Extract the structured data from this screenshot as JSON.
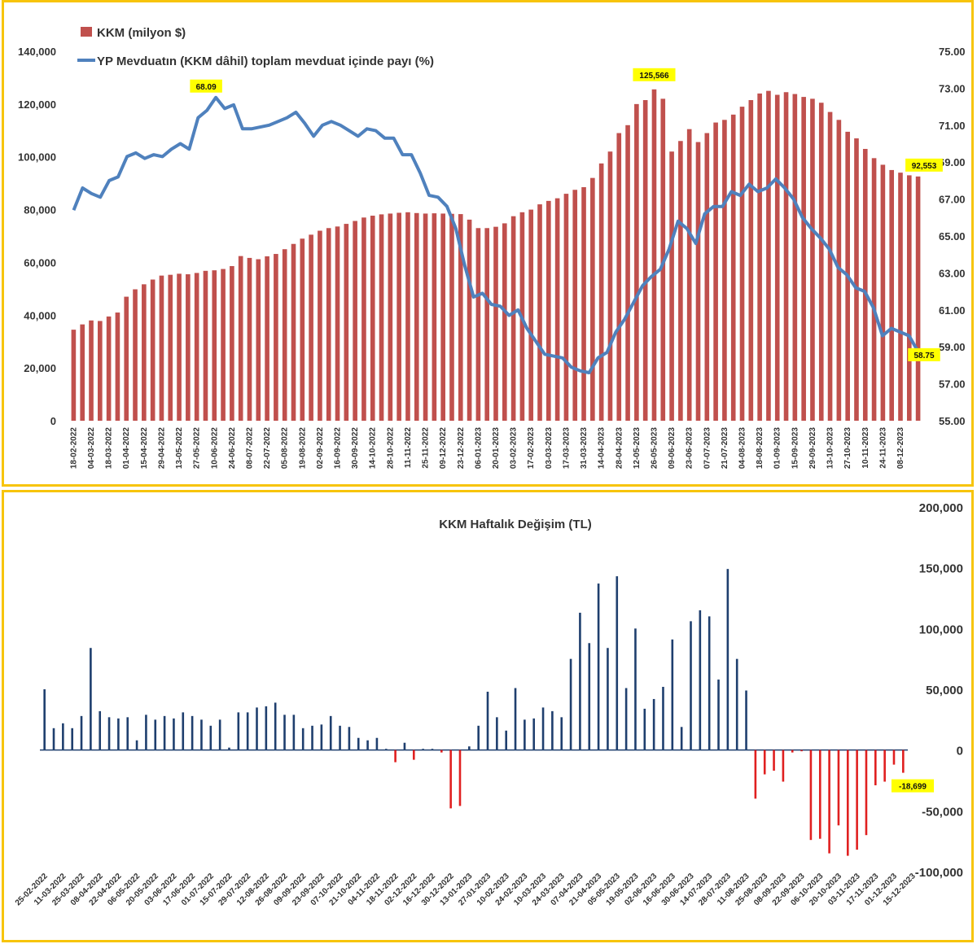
{
  "colors": {
    "frame": "#f7c40a",
    "kkm_bar": "#c0504d",
    "share_line": "#4f81bd",
    "pos_bar": "#1f3f6e",
    "neg_bar": "#e02020",
    "callout_bg": "#ffff00"
  },
  "chart_data": [
    {
      "type": "bar+line",
      "legend": [
        "KKM (milyon $)",
        "YP Mevduatın (KKM dâhil) toplam mevduat içinde payı (%)"
      ],
      "legend_position": "top-left",
      "y_left": {
        "range": [
          0,
          140000
        ],
        "ticks": [
          "0",
          "20,000",
          "40,000",
          "60,000",
          "80,000",
          "100,000",
          "120,000",
          "140,000"
        ]
      },
      "y_right": {
        "range": [
          55,
          75
        ],
        "ticks": [
          "55.00",
          "57.00",
          "59.00",
          "61.00",
          "63.00",
          "65.00",
          "67.00",
          "69.00",
          "71.00",
          "73.00",
          "75.00"
        ]
      },
      "x_labels": [
        "18-02-2022",
        "04-03-2022",
        "18-03-2022",
        "01-04-2022",
        "15-04-2022",
        "29-04-2022",
        "13-05-2022",
        "27-05-2022",
        "10-06-2022",
        "24-06-2022",
        "08-07-2022",
        "22-07-2022",
        "05-08-2022",
        "19-08-2022",
        "02-09-2022",
        "16-09-2022",
        "30-09-2022",
        "14-10-2022",
        "28-10-2022",
        "11-11-2022",
        "25-11-2022",
        "09-12-2022",
        "23-12-2022",
        "06-01-2023",
        "20-01-2023",
        "03-02-2023",
        "17-02-2023",
        "03-03-2023",
        "17-03-2023",
        "31-03-2023",
        "14-04-2023",
        "28-04-2023",
        "12-05-2023",
        "26-05-2023",
        "09-06-2023",
        "23-06-2023",
        "07-07-2023",
        "21-07-2023",
        "04-08-2023",
        "18-08-2023",
        "01-09-2023",
        "15-09-2023",
        "29-09-2023",
        "13-10-2023",
        "27-10-2023",
        "10-11-2023",
        "24-11-2023",
        "08-12-2023"
      ],
      "series": [
        {
          "name": "KKM (milyon $)",
          "type": "bar",
          "axis": "left",
          "values": [
            34500,
            36500,
            38000,
            37800,
            39500,
            41000,
            47000,
            49800,
            51700,
            53500,
            55000,
            55300,
            55700,
            55500,
            56000,
            56800,
            57000,
            57500,
            58600,
            62400,
            61700,
            61200,
            62300,
            63200,
            65000,
            67000,
            69000,
            70500,
            72000,
            73000,
            73600,
            74600,
            75700,
            77000,
            77700,
            78200,
            78500,
            78800,
            79000,
            78700,
            78500,
            78600,
            78500,
            78400,
            78300,
            76200,
            73000,
            73000,
            73500,
            74800,
            77500,
            79000,
            80000,
            82000,
            83300,
            84300,
            86000,
            87500,
            88500,
            92000,
            97500,
            102000,
            109000,
            112000,
            120000,
            121500,
            125566,
            122000,
            102000,
            106000,
            110500,
            105600,
            109000,
            113000,
            114000,
            116000,
            119000,
            121500,
            124000,
            125000,
            123500,
            124500,
            123800,
            122700,
            122000,
            120500,
            117000,
            114000,
            109500,
            107000,
            103000,
            99500,
            97000,
            95000,
            94000,
            93000,
            92553
          ]
        },
        {
          "name": "YP Mevduatın (KKM dâhil) toplam mevduat içinde payı (%)",
          "type": "line",
          "axis": "right",
          "values": [
            66.4,
            67.6,
            67.3,
            67.1,
            68.0,
            68.2,
            69.3,
            69.5,
            69.2,
            69.4,
            69.3,
            69.7,
            70.0,
            69.7,
            71.4,
            71.8,
            72.5,
            71.9,
            72.1,
            70.8,
            70.8,
            70.9,
            71.0,
            71.2,
            71.4,
            71.7,
            71.1,
            70.4,
            71.0,
            71.2,
            71.0,
            70.7,
            70.4,
            70.8,
            70.7,
            70.3,
            70.3,
            69.4,
            69.4,
            68.4,
            67.2,
            67.1,
            66.6,
            65.4,
            63.4,
            61.7,
            61.9,
            61.3,
            61.2,
            60.7,
            61.0,
            60.0,
            59.3,
            58.6,
            58.5,
            58.4,
            57.9,
            57.7,
            57.6,
            58.4,
            58.7,
            59.8,
            60.5,
            61.4,
            62.3,
            62.8,
            63.2,
            64.3,
            65.8,
            65.4,
            64.6,
            66.2,
            66.6,
            66.6,
            67.4,
            67.2,
            67.8,
            67.4,
            67.6,
            68.09,
            67.6,
            67.0,
            66.0,
            65.4,
            64.9,
            64.3,
            63.3,
            62.9,
            62.2,
            62.0,
            61.1,
            59.6,
            60.0,
            59.8,
            59.6,
            58.75
          ]
        }
      ],
      "annotations": [
        {
          "series": "KKM (milyon $)",
          "label": "125,566"
        },
        {
          "series": "KKM (milyon $)",
          "label": "92,553"
        },
        {
          "series": "YP Mevduatın (KKM dâhil) toplam mevduat içinde payı (%)",
          "label": "68.09"
        },
        {
          "series": "YP Mevduatın (KKM dâhil) toplam mevduat içinde payı (%)",
          "label": "58.75"
        }
      ]
    },
    {
      "type": "bar",
      "title": "KKM Haftalık Değişim (TL)",
      "y_right": {
        "range": [
          -100000,
          200000
        ],
        "ticks": [
          "-100,000",
          "-50,000",
          "0",
          "50,000",
          "100,000",
          "150,000",
          "200,000"
        ]
      },
      "x_labels": [
        "25-02-2022",
        "11-03-2022",
        "25-03-2022",
        "08-04-2022",
        "22-04-2022",
        "06-05-2022",
        "20-05-2022",
        "03-06-2022",
        "17-06-2022",
        "01-07-2022",
        "15-07-2022",
        "29-07-2022",
        "12-08-2022",
        "26-08-2022",
        "09-09-2022",
        "23-09-2022",
        "07-10-2022",
        "21-10-2022",
        "04-11-2022",
        "18-11-2022",
        "02-12-2022",
        "16-12-2022",
        "30-12-2022",
        "13-01-2023",
        "27-01-2023",
        "10-02-2023",
        "24-02-2023",
        "10-03-2023",
        "24-03-2023",
        "07-04-2023",
        "21-04-2023",
        "05-05-2023",
        "19-05-2023",
        "02-06-2023",
        "16-06-2023",
        "30-06-2023",
        "14-07-2023",
        "28-07-2023",
        "11-08-2023",
        "25-08-2023",
        "08-09-2023",
        "22-09-2023",
        "06-10-2023",
        "20-10-2023",
        "03-11-2023",
        "17-11-2023",
        "01-12-2023",
        "15-12-2023"
      ],
      "values": [
        50000,
        18000,
        22000,
        18000,
        28000,
        84000,
        32000,
        27000,
        26000,
        27000,
        8000,
        29000,
        25000,
        28000,
        26000,
        31000,
        28000,
        25000,
        20000,
        25000,
        2000,
        31000,
        31000,
        35000,
        36000,
        39000,
        29000,
        29000,
        18000,
        20000,
        21000,
        28000,
        20000,
        19000,
        10000,
        8000,
        10000,
        1000,
        -10000,
        6000,
        -8000,
        1000,
        1000,
        -2000,
        -48000,
        -46000,
        3000,
        20000,
        48000,
        27000,
        16000,
        51000,
        25000,
        26000,
        35000,
        32000,
        27000,
        75000,
        113000,
        88000,
        137000,
        84000,
        143000,
        51000,
        100000,
        34000,
        42000,
        52000,
        91000,
        19000,
        106000,
        115000,
        110000,
        58000,
        149000,
        75000,
        49000,
        -40000,
        -20000,
        -17000,
        -26000,
        -2000,
        -1000,
        -74000,
        -73000,
        -85000,
        -62000,
        -87000,
        -82000,
        -70000,
        -29000,
        -26000,
        -12000,
        -18699
      ],
      "annotations": [
        {
          "label": "-18,699"
        }
      ]
    }
  ]
}
